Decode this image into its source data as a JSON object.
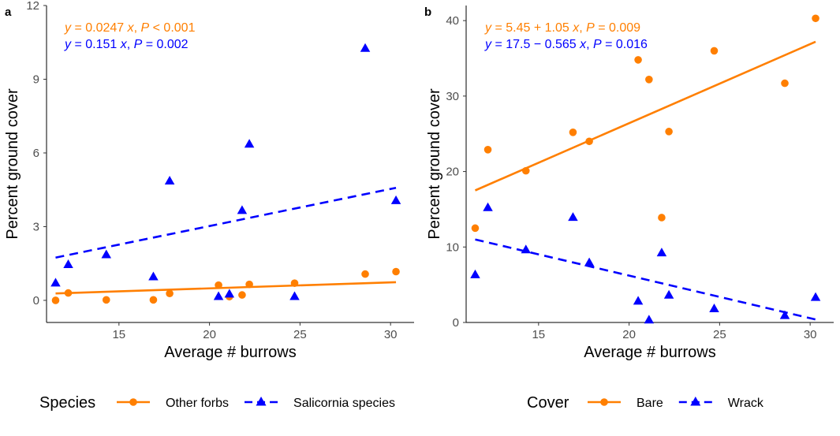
{
  "chart_data": [
    {
      "panel": "a",
      "type": "scatter",
      "xlabel": "Average # burrows",
      "ylabel": "Percent ground cover",
      "xlim": [
        11,
        31.3
      ],
      "ylim": [
        -0.9,
        12
      ],
      "xticks": [
        15,
        20,
        25,
        30
      ],
      "yticks": [
        0,
        3,
        6,
        9,
        12
      ],
      "grid": false,
      "legend": {
        "title": "Species",
        "position": "bottom"
      },
      "series": [
        {
          "name": "Other forbs",
          "color": "#ff7f00",
          "marker": "circle",
          "line": "solid",
          "equation": {
            "prefix": "y",
            "body": " = 0.0247 ",
            "xvar": "x",
            "sep": ", ",
            "pvar": "P",
            "pval": " < 0.001"
          },
          "fit": {
            "x": [
              11.5,
              30.3
            ],
            "y": [
              0.28,
              0.74
            ]
          },
          "x": [
            11.5,
            12.2,
            14.3,
            16.9,
            17.8,
            20.5,
            21.1,
            21.8,
            22.2,
            24.7,
            28.6,
            30.3
          ],
          "y": [
            0.0,
            0.3,
            0.02,
            0.02,
            0.28,
            0.62,
            0.15,
            0.22,
            0.65,
            0.7,
            1.07,
            1.17
          ]
        },
        {
          "name": "Salicornia species",
          "color": "#0000ff",
          "marker": "triangle",
          "line": "dashed",
          "equation": {
            "prefix": "y",
            "body": " = 0.151 ",
            "xvar": "x",
            "sep": ", ",
            "pvar": "P",
            "pval": " = 0.002"
          },
          "fit": {
            "x": [
              11.5,
              30.3
            ],
            "y": [
              1.74,
              4.58
            ]
          },
          "x": [
            11.5,
            12.2,
            14.3,
            16.9,
            17.8,
            20.5,
            21.1,
            21.8,
            22.2,
            24.7,
            28.6,
            30.3
          ],
          "y": [
            0.7,
            1.45,
            1.85,
            0.95,
            4.85,
            0.15,
            0.25,
            3.65,
            6.35,
            0.15,
            10.25,
            4.05
          ]
        }
      ]
    },
    {
      "panel": "b",
      "type": "scatter",
      "xlabel": "Average # burrows",
      "ylabel": "Percent ground cover",
      "xlim": [
        11,
        31.3
      ],
      "ylim": [
        0,
        42
      ],
      "xticks": [
        15,
        20,
        25,
        30
      ],
      "yticks": [
        0,
        10,
        20,
        30,
        40
      ],
      "grid": false,
      "legend": {
        "title": "Cover",
        "position": "bottom"
      },
      "series": [
        {
          "name": "Bare",
          "color": "#ff7f00",
          "marker": "circle",
          "line": "solid",
          "equation": {
            "prefix": "y",
            "body": " = 5.45 + 1.05 ",
            "xvar": "x",
            "sep": ", ",
            "pvar": "P",
            "pval": " = 0.009"
          },
          "fit": {
            "x": [
              11.5,
              30.3
            ],
            "y": [
              17.5,
              37.2
            ]
          },
          "x": [
            11.5,
            12.2,
            14.3,
            16.9,
            17.8,
            20.5,
            21.1,
            21.8,
            22.2,
            24.7,
            28.6,
            30.3
          ],
          "y": [
            12.5,
            22.9,
            20.1,
            25.2,
            24.0,
            34.8,
            32.2,
            13.9,
            25.3,
            36.0,
            31.7,
            40.3
          ]
        },
        {
          "name": "Wrack",
          "color": "#0000ff",
          "marker": "triangle",
          "line": "dashed",
          "equation": {
            "prefix": "y",
            "body": " = 17.5 − 0.565 ",
            "xvar": "x",
            "sep": ", ",
            "pvar": "P",
            "pval": " = 0.016"
          },
          "fit": {
            "x": [
              11.5,
              30.3
            ],
            "y": [
              11.0,
              0.4
            ]
          },
          "x": [
            11.5,
            12.2,
            14.3,
            16.9,
            17.8,
            20.5,
            21.1,
            21.8,
            22.2,
            24.7,
            28.6,
            30.3
          ],
          "y": [
            6.3,
            15.2,
            9.6,
            13.9,
            7.9,
            2.8,
            0.3,
            9.2,
            3.6,
            1.8,
            0.9,
            3.3
          ]
        }
      ]
    }
  ]
}
